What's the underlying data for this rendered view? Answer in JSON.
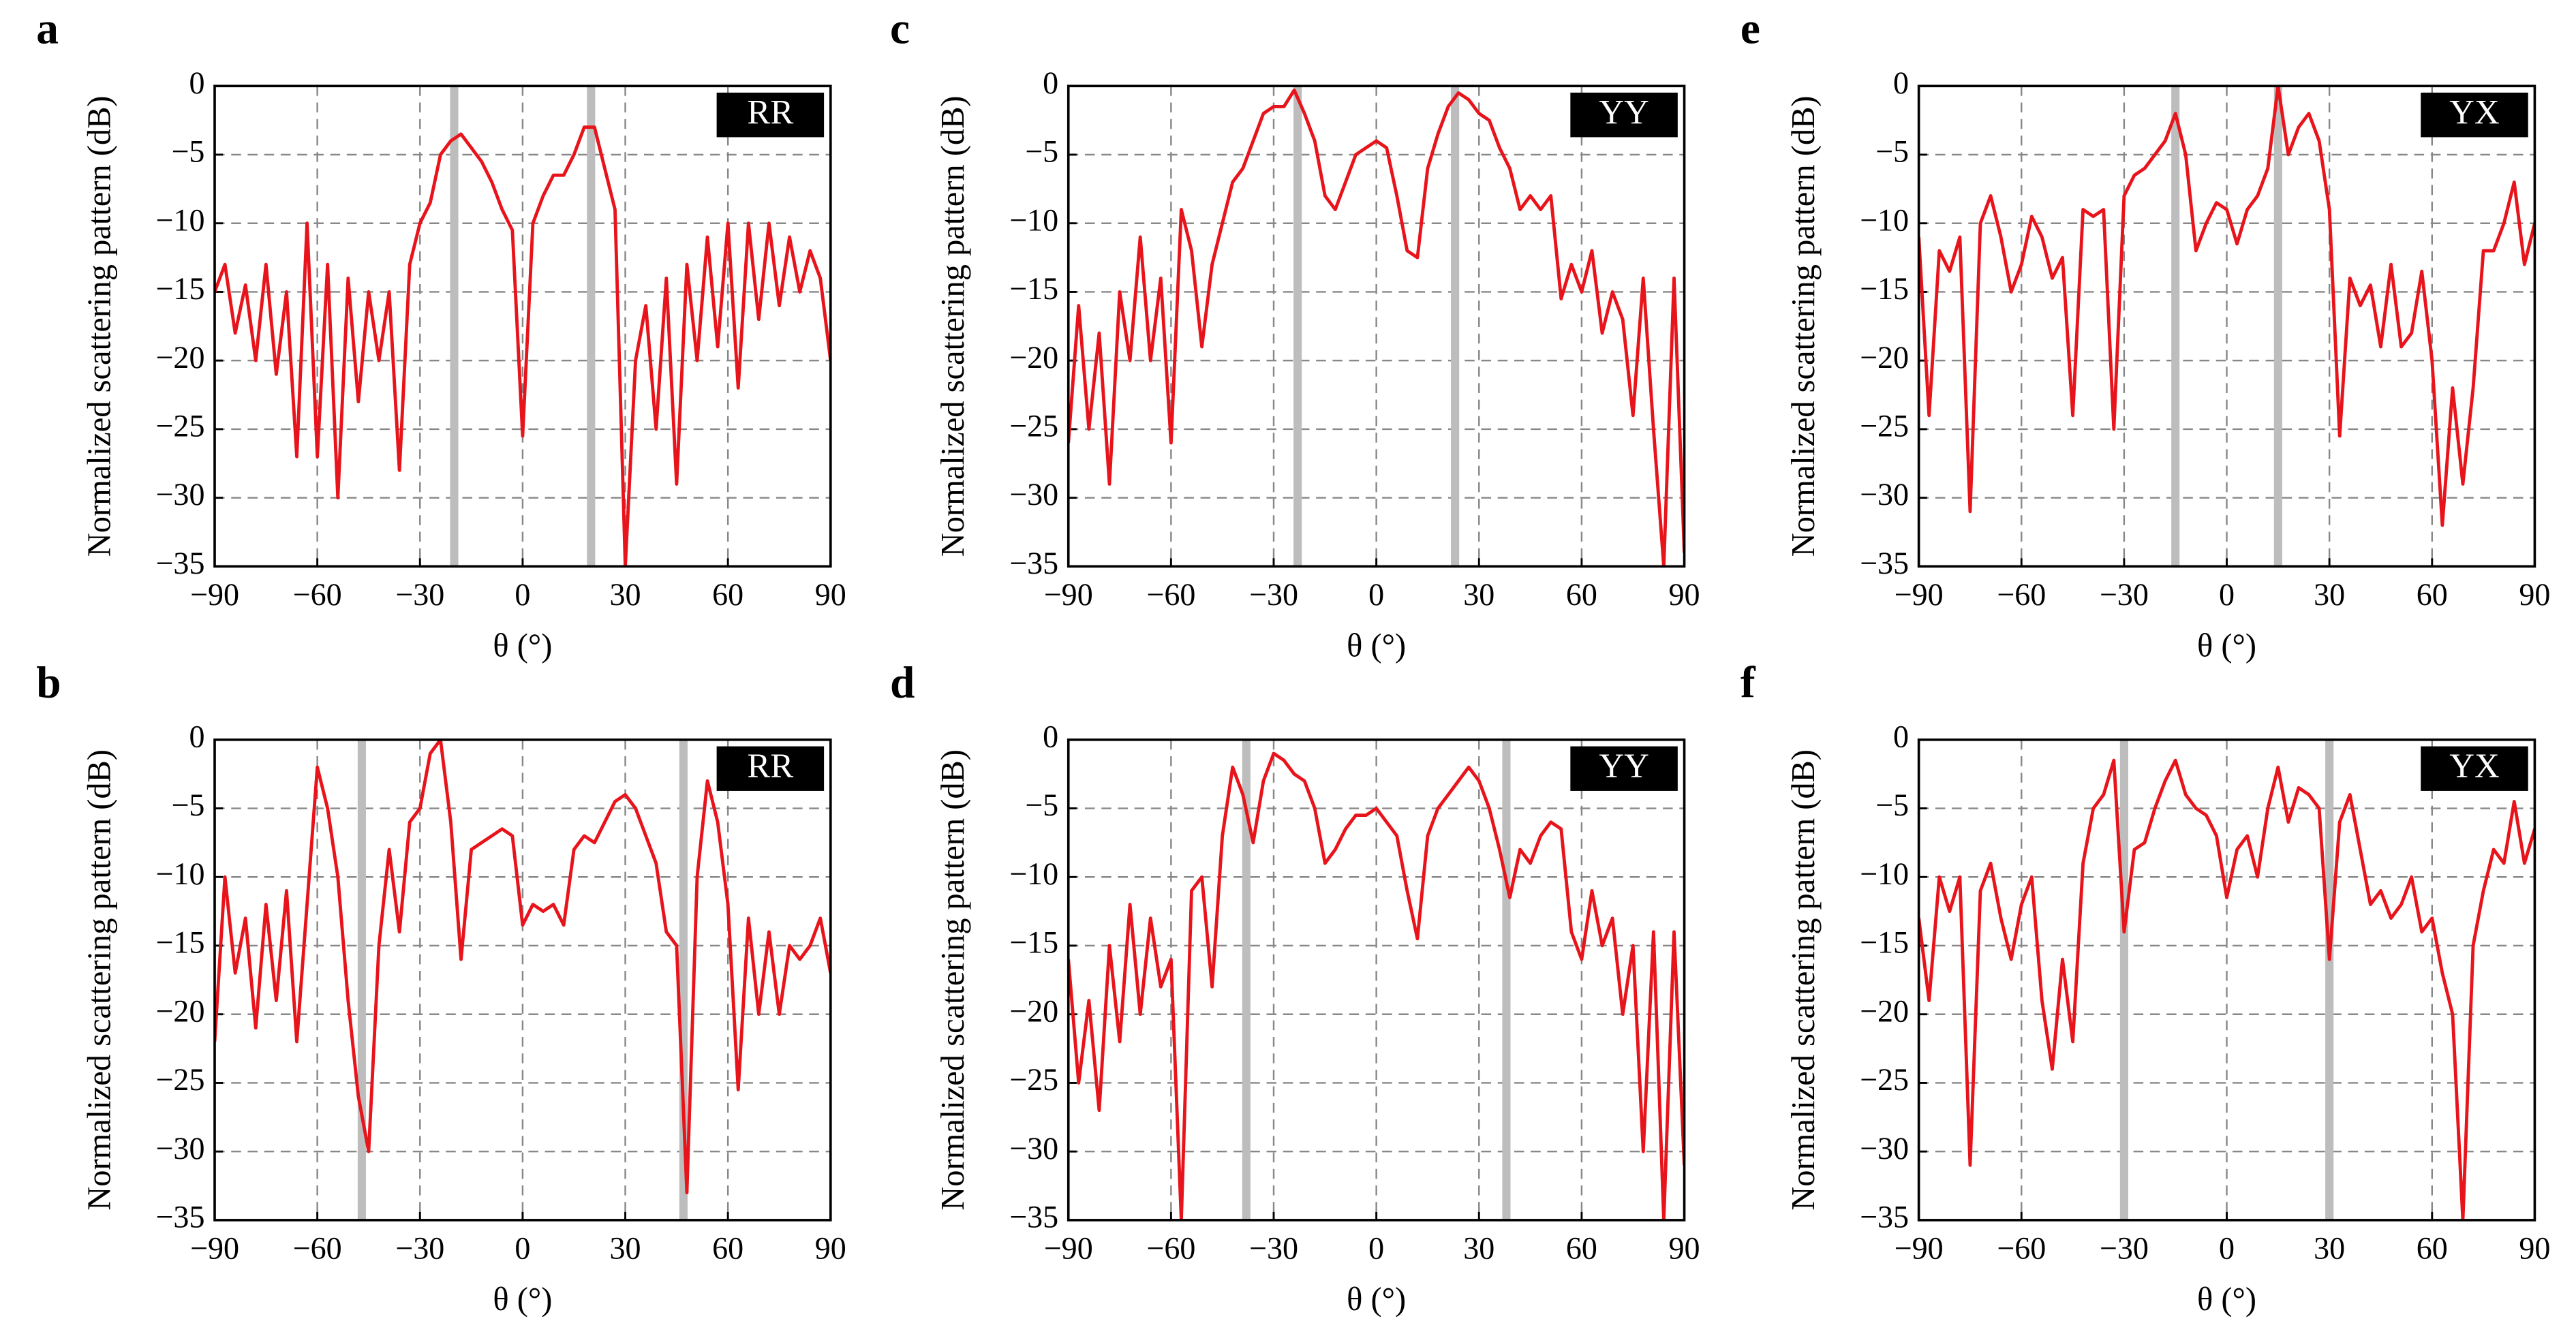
{
  "chart_data": [
    {
      "type": "line",
      "panel": "a",
      "badge": "RR",
      "ylabel": "Normalized scattering pattern (dB)",
      "xlabel": "θ (°)",
      "color": "#e8141b",
      "highlight_color": "#bdbdbd",
      "grid": true,
      "xlim": [
        -90,
        90
      ],
      "ylim": [
        -35,
        0
      ],
      "xticks": [
        {
          "value": -90,
          "label": "−90"
        },
        {
          "value": -60,
          "label": "−60"
        },
        {
          "value": -30,
          "label": "−30"
        },
        0,
        30,
        60,
        90
      ],
      "yticks": [
        {
          "value": -35,
          "label": "−35"
        },
        {
          "value": -30,
          "label": "−30"
        },
        {
          "value": -25,
          "label": "−25"
        },
        {
          "value": -20,
          "label": "−20"
        },
        {
          "value": -15,
          "label": "−15"
        },
        {
          "value": -10,
          "label": "−10"
        },
        {
          "value": -5,
          "label": "−5"
        },
        0
      ],
      "highlights": [
        -20,
        20
      ],
      "x": [
        -90,
        -87,
        -84,
        -81,
        -78,
        -75,
        -72,
        -69,
        -66,
        -63,
        -60,
        -57,
        -54,
        -51,
        -48,
        -45,
        -42,
        -39,
        -36,
        -33,
        -30,
        -27,
        -24,
        -21,
        -18,
        -15,
        -12,
        -9,
        -6,
        -3,
        0,
        3,
        6,
        9,
        12,
        15,
        18,
        21,
        24,
        27,
        30,
        33,
        36,
        39,
        42,
        45,
        48,
        51,
        54,
        57,
        60,
        63,
        66,
        69,
        72,
        75,
        78,
        81,
        84,
        87,
        90
      ],
      "values": [
        -15,
        -13,
        -18,
        -14.5,
        -20,
        -13,
        -21,
        -15,
        -27,
        -10,
        -27,
        -13,
        -30,
        -14,
        -23,
        -15,
        -20,
        -15,
        -28,
        -13,
        -10,
        -8.5,
        -5,
        -4,
        -3.5,
        -4.5,
        -5.5,
        -7,
        -9,
        -10.5,
        -25.5,
        -10,
        -8,
        -6.5,
        -6.5,
        -5,
        -3,
        -3,
        -6,
        -9,
        -35,
        -20,
        -16,
        -25,
        -14,
        -29,
        -13,
        -20,
        -11,
        -19,
        -10,
        -22,
        -10,
        -17,
        -10,
        -16,
        -11,
        -15,
        -12,
        -14,
        -20
      ]
    },
    {
      "type": "line",
      "panel": "b",
      "badge": "RR",
      "ylabel": "Normalized scattering pattern (dB)",
      "xlabel": "θ (°)",
      "color": "#e8141b",
      "highlight_color": "#bdbdbd",
      "grid": true,
      "xlim": [
        -90,
        90
      ],
      "ylim": [
        -35,
        0
      ],
      "xticks": [
        {
          "value": -90,
          "label": "−90"
        },
        {
          "value": -60,
          "label": "−60"
        },
        {
          "value": -30,
          "label": "−30"
        },
        0,
        30,
        60,
        90
      ],
      "yticks": [
        {
          "value": -35,
          "label": "−35"
        },
        {
          "value": -30,
          "label": "−30"
        },
        {
          "value": -25,
          "label": "−25"
        },
        {
          "value": -20,
          "label": "−20"
        },
        {
          "value": -15,
          "label": "−15"
        },
        {
          "value": -10,
          "label": "−10"
        },
        {
          "value": -5,
          "label": "−5"
        },
        0
      ],
      "highlights": [
        -47,
        47
      ],
      "x": [
        -90,
        -87,
        -84,
        -81,
        -78,
        -75,
        -72,
        -69,
        -66,
        -63,
        -60,
        -57,
        -54,
        -51,
        -48,
        -45,
        -42,
        -39,
        -36,
        -33,
        -30,
        -27,
        -24,
        -21,
        -18,
        -15,
        -12,
        -9,
        -6,
        -3,
        0,
        3,
        6,
        9,
        12,
        15,
        18,
        21,
        24,
        27,
        30,
        33,
        36,
        39,
        42,
        45,
        48,
        51,
        54,
        57,
        60,
        63,
        66,
        69,
        72,
        75,
        78,
        81,
        84,
        87,
        90
      ],
      "values": [
        -22,
        -10,
        -17,
        -13,
        -21,
        -12,
        -19,
        -11,
        -22,
        -12,
        -2,
        -5,
        -10,
        -19,
        -26,
        -30,
        -15,
        -8,
        -14,
        -6,
        -5,
        -1,
        0,
        -6,
        -16,
        -8,
        -7.5,
        -7,
        -6.5,
        -7,
        -13.5,
        -12,
        -12.5,
        -12,
        -13.5,
        -8,
        -7,
        -7.5,
        -6,
        -4.5,
        -4,
        -5,
        -7,
        -9,
        -14,
        -15,
        -33,
        -10,
        -3,
        -6,
        -12,
        -25.5,
        -13,
        -20,
        -14,
        -20,
        -15,
        -16,
        -15,
        -13,
        -17
      ]
    },
    {
      "type": "line",
      "panel": "c",
      "badge": "YY",
      "ylabel": "Normalized scattering pattern (dB)",
      "xlabel": "θ (°)",
      "color": "#e8141b",
      "highlight_color": "#bdbdbd",
      "grid": true,
      "xlim": [
        -90,
        90
      ],
      "ylim": [
        -35,
        0
      ],
      "xticks": [
        {
          "value": -90,
          "label": "−90"
        },
        {
          "value": -60,
          "label": "−60"
        },
        {
          "value": -30,
          "label": "−30"
        },
        0,
        30,
        60,
        90
      ],
      "yticks": [
        {
          "value": -35,
          "label": "−35"
        },
        {
          "value": -30,
          "label": "−30"
        },
        {
          "value": -25,
          "label": "−25"
        },
        {
          "value": -20,
          "label": "−20"
        },
        {
          "value": -15,
          "label": "−15"
        },
        {
          "value": -10,
          "label": "−10"
        },
        {
          "value": -5,
          "label": "−5"
        },
        0
      ],
      "highlights": [
        -23,
        23
      ],
      "x": [
        -90,
        -87,
        -84,
        -81,
        -78,
        -75,
        -72,
        -69,
        -66,
        -63,
        -60,
        -57,
        -54,
        -51,
        -48,
        -45,
        -42,
        -39,
        -36,
        -33,
        -30,
        -27,
        -24,
        -21,
        -18,
        -15,
        -12,
        -9,
        -6,
        -3,
        0,
        3,
        6,
        9,
        12,
        15,
        18,
        21,
        24,
        27,
        30,
        33,
        36,
        39,
        42,
        45,
        48,
        51,
        54,
        57,
        60,
        63,
        66,
        69,
        72,
        75,
        78,
        81,
        84,
        87,
        90
      ],
      "values": [
        -26,
        -16,
        -25,
        -18,
        -29,
        -15,
        -20,
        -11,
        -20,
        -14,
        -26,
        -9,
        -12,
        -19,
        -13,
        -10,
        -7,
        -6,
        -4,
        -2,
        -1.5,
        -1.5,
        -0.3,
        -2,
        -4,
        -8,
        -9,
        -7,
        -5,
        -4.5,
        -4,
        -4.5,
        -8,
        -12,
        -12.5,
        -6,
        -3.5,
        -1.5,
        -0.5,
        -1,
        -2,
        -2.5,
        -4.5,
        -6,
        -9,
        -8,
        -9,
        -8,
        -15.5,
        -13,
        -15,
        -12,
        -18,
        -15,
        -17,
        -24,
        -14,
        -25,
        -35,
        -14,
        -34
      ]
    },
    {
      "type": "line",
      "panel": "d",
      "badge": "YY",
      "ylabel": "Normalized scattering pattern (dB)",
      "xlabel": "θ (°)",
      "color": "#e8141b",
      "highlight_color": "#bdbdbd",
      "grid": true,
      "xlim": [
        -90,
        90
      ],
      "ylim": [
        -35,
        0
      ],
      "xticks": [
        {
          "value": -90,
          "label": "−90"
        },
        {
          "value": -60,
          "label": "−60"
        },
        {
          "value": -30,
          "label": "−30"
        },
        0,
        30,
        60,
        90
      ],
      "yticks": [
        {
          "value": -35,
          "label": "−35"
        },
        {
          "value": -30,
          "label": "−30"
        },
        {
          "value": -25,
          "label": "−25"
        },
        {
          "value": -20,
          "label": "−20"
        },
        {
          "value": -15,
          "label": "−15"
        },
        {
          "value": -10,
          "label": "−10"
        },
        {
          "value": -5,
          "label": "−5"
        },
        0
      ],
      "highlights": [
        -38,
        38
      ],
      "x": [
        -90,
        -87,
        -84,
        -81,
        -78,
        -75,
        -72,
        -69,
        -66,
        -63,
        -60,
        -57,
        -54,
        -51,
        -48,
        -45,
        -42,
        -39,
        -36,
        -33,
        -30,
        -27,
        -24,
        -21,
        -18,
        -15,
        -12,
        -9,
        -6,
        -3,
        0,
        3,
        6,
        9,
        12,
        15,
        18,
        21,
        24,
        27,
        30,
        33,
        36,
        39,
        42,
        45,
        48,
        51,
        54,
        57,
        60,
        63,
        66,
        69,
        72,
        75,
        78,
        81,
        84,
        87,
        90
      ],
      "values": [
        -16,
        -25,
        -19,
        -27,
        -15,
        -22,
        -12,
        -20,
        -13,
        -18,
        -16,
        -35,
        -11,
        -10,
        -18,
        -7,
        -2,
        -4,
        -7.5,
        -3,
        -1,
        -1.5,
        -2.5,
        -3,
        -5,
        -9,
        -8,
        -6.5,
        -5.5,
        -5.5,
        -5,
        -6,
        -7,
        -11,
        -14.5,
        -7,
        -5,
        -4,
        -3,
        -2,
        -3,
        -5,
        -8,
        -11.5,
        -8,
        -9,
        -7,
        -6,
        -6.5,
        -14,
        -16,
        -11,
        -15,
        -13,
        -20,
        -15,
        -30,
        -14,
        -35,
        -14,
        -31
      ]
    },
    {
      "type": "line",
      "panel": "e",
      "badge": "YX",
      "ylabel": "Normalized scattering pattern (dB)",
      "xlabel": "θ (°)",
      "color": "#e8141b",
      "highlight_color": "#bdbdbd",
      "grid": true,
      "xlim": [
        -90,
        90
      ],
      "ylim": [
        -35,
        0
      ],
      "xticks": [
        {
          "value": -90,
          "label": "−90"
        },
        {
          "value": -60,
          "label": "−60"
        },
        {
          "value": -30,
          "label": "−30"
        },
        0,
        30,
        60,
        90
      ],
      "yticks": [
        {
          "value": -35,
          "label": "−35"
        },
        {
          "value": -30,
          "label": "−30"
        },
        {
          "value": -25,
          "label": "−25"
        },
        {
          "value": -20,
          "label": "−20"
        },
        {
          "value": -15,
          "label": "−15"
        },
        {
          "value": -10,
          "label": "−10"
        },
        {
          "value": -5,
          "label": "−5"
        },
        0
      ],
      "highlights": [
        -15,
        15
      ],
      "x": [
        -90,
        -87,
        -84,
        -81,
        -78,
        -75,
        -72,
        -69,
        -66,
        -63,
        -60,
        -57,
        -54,
        -51,
        -48,
        -45,
        -42,
        -39,
        -36,
        -33,
        -30,
        -27,
        -24,
        -21,
        -18,
        -15,
        -12,
        -9,
        -6,
        -3,
        0,
        3,
        6,
        9,
        12,
        15,
        18,
        21,
        24,
        27,
        30,
        33,
        36,
        39,
        42,
        45,
        48,
        51,
        54,
        57,
        60,
        63,
        66,
        69,
        72,
        75,
        78,
        81,
        84,
        87,
        90
      ],
      "values": [
        -11,
        -24,
        -12,
        -13.5,
        -11,
        -31,
        -10,
        -8,
        -11,
        -15,
        -13,
        -9.5,
        -11,
        -14,
        -12.5,
        -24,
        -9,
        -9.5,
        -9,
        -25,
        -8,
        -6.5,
        -6,
        -5,
        -4,
        -2,
        -5,
        -12,
        -10,
        -8.5,
        -9,
        -11.5,
        -9,
        -8,
        -6,
        0,
        -5,
        -3,
        -2,
        -4,
        -9,
        -25.5,
        -14,
        -16,
        -14.5,
        -19,
        -13,
        -19,
        -18,
        -13.5,
        -20,
        -32,
        -22,
        -29,
        -22,
        -12,
        -12,
        -10,
        -7,
        -13,
        -10
      ]
    },
    {
      "type": "line",
      "panel": "f",
      "badge": "YX",
      "ylabel": "Normalized scattering pattern (dB)",
      "xlabel": "θ (°)",
      "color": "#e8141b",
      "highlight_color": "#bdbdbd",
      "grid": true,
      "xlim": [
        -90,
        90
      ],
      "ylim": [
        -35,
        0
      ],
      "xticks": [
        {
          "value": -90,
          "label": "−90"
        },
        {
          "value": -60,
          "label": "−60"
        },
        {
          "value": -30,
          "label": "−30"
        },
        0,
        30,
        60,
        90
      ],
      "yticks": [
        {
          "value": -35,
          "label": "−35"
        },
        {
          "value": -30,
          "label": "−30"
        },
        {
          "value": -25,
          "label": "−25"
        },
        {
          "value": -20,
          "label": "−20"
        },
        {
          "value": -15,
          "label": "−15"
        },
        {
          "value": -10,
          "label": "−10"
        },
        {
          "value": -5,
          "label": "−5"
        },
        0
      ],
      "highlights": [
        -30,
        30
      ],
      "x": [
        -90,
        -87,
        -84,
        -81,
        -78,
        -75,
        -72,
        -69,
        -66,
        -63,
        -60,
        -57,
        -54,
        -51,
        -48,
        -45,
        -42,
        -39,
        -36,
        -33,
        -30,
        -27,
        -24,
        -21,
        -18,
        -15,
        -12,
        -9,
        -6,
        -3,
        0,
        3,
        6,
        9,
        12,
        15,
        18,
        21,
        24,
        27,
        30,
        33,
        36,
        39,
        42,
        45,
        48,
        51,
        54,
        57,
        60,
        63,
        66,
        69,
        72,
        75,
        78,
        81,
        84,
        87,
        90
      ],
      "values": [
        -13,
        -19,
        -10,
        -12.5,
        -10,
        -31,
        -11,
        -9,
        -13,
        -16,
        -12,
        -10,
        -19,
        -24,
        -16,
        -22,
        -9,
        -5,
        -4,
        -1.5,
        -14,
        -8,
        -7.5,
        -5,
        -3,
        -1.5,
        -4,
        -5,
        -5.5,
        -7,
        -11.5,
        -8,
        -7,
        -10,
        -5,
        -2,
        -6,
        -3.5,
        -4,
        -5,
        -16,
        -6,
        -4,
        -8,
        -12,
        -11,
        -13,
        -12,
        -10,
        -14,
        -13,
        -17,
        -20,
        -35,
        -15,
        -11,
        -8,
        -9,
        -4.5,
        -9,
        -6.5
      ]
    }
  ]
}
